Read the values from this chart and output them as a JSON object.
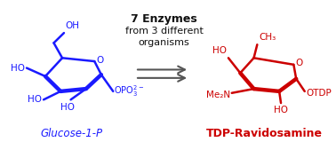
{
  "background_color": "#ffffff",
  "arrow_text_line1": "7 Enzymes",
  "arrow_text_line2": "from 3 different",
  "arrow_text_line3": "organisms",
  "label_left": "Glucose-1-P",
  "label_right": "TDP-Ravidosamine",
  "label_left_color": "#1a1aff",
  "label_right_color": "#cc0000",
  "arrow_color": "#555555",
  "figsize": [
    3.78,
    1.6
  ],
  "dpi": 100
}
